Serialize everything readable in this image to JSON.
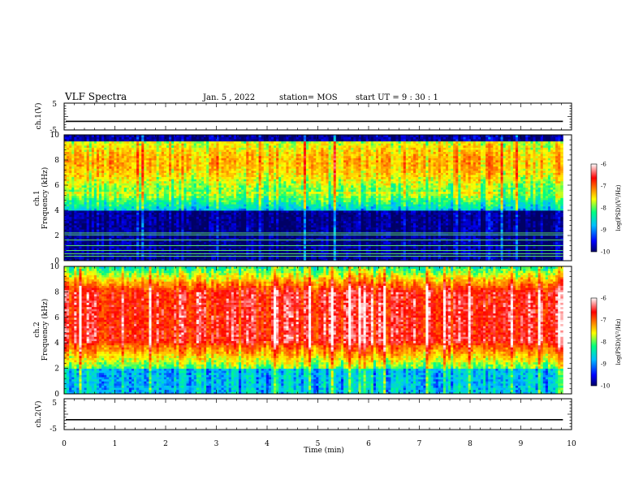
{
  "header": {
    "title": "VLF Spectra",
    "date": "Jan. 5 , 2022",
    "station": "station= MOS",
    "start_ut": "start UT =  9 : 30 : 1"
  },
  "chart_data": [
    {
      "type": "line",
      "panel": "ch1-voltage",
      "ylabel": "ch.1(V)",
      "xlim": [
        0,
        10
      ],
      "ylim": [
        -5,
        5
      ],
      "y_ticks": [
        "5",
        "-5"
      ],
      "level": -1.8
    },
    {
      "type": "heatmap",
      "panel": "ch1-spectrogram",
      "ylabel": [
        "ch.1",
        "Frequency (kHz)"
      ],
      "xlim": [
        0,
        10
      ],
      "ylim": [
        0,
        10
      ],
      "y_ticks": [
        "0",
        "2",
        "4",
        "6",
        "8",
        "10"
      ],
      "data_end_min": 9.83,
      "colorbar": {
        "label": "log(PSD)(V²/Hz)",
        "range": [
          -10,
          -6
        ],
        "ticks": [
          "-6",
          "-7",
          "-8",
          "-9",
          "-10"
        ]
      },
      "intense_band_khz": [
        5.5,
        9.5
      ],
      "weak_below_khz": 4,
      "tone_lines_khz": [
        0.35,
        0.55,
        0.8,
        1.2,
        1.65,
        2.05,
        2.2
      ]
    },
    {
      "type": "heatmap",
      "panel": "ch2-spectrogram",
      "ylabel": [
        "ch.2",
        "Frequency (kHz)"
      ],
      "xlim": [
        0,
        10
      ],
      "ylim": [
        0,
        10
      ],
      "y_ticks": [
        "0",
        "2",
        "4",
        "6",
        "8",
        "10"
      ],
      "data_end_min": 9.83,
      "colorbar": {
        "label": "log(PSD)(V²/Hz)",
        "range": [
          -10,
          -6
        ],
        "ticks": [
          "-6",
          "-7",
          "-8",
          "-9",
          "-10"
        ]
      },
      "intense_band_khz": [
        4,
        8
      ]
    },
    {
      "type": "line",
      "panel": "ch2-voltage",
      "ylabel": "ch.2(V)",
      "xlim": [
        0,
        10
      ],
      "ylim": [
        -5,
        5
      ],
      "y_ticks": [
        "5",
        "-5"
      ],
      "level": -1.8
    }
  ],
  "x_axis": {
    "label": "Time (min)",
    "ticks": [
      "0",
      "1",
      "2",
      "3",
      "4",
      "5",
      "6",
      "7",
      "8",
      "9",
      "10"
    ]
  },
  "colors": {
    "colormap": [
      "#000066",
      "#0000ff",
      "#00bfff",
      "#00ff80",
      "#ffff00",
      "#ff8000",
      "#ff0000",
      "#ffffff"
    ],
    "tone_line": "#66ff66"
  }
}
